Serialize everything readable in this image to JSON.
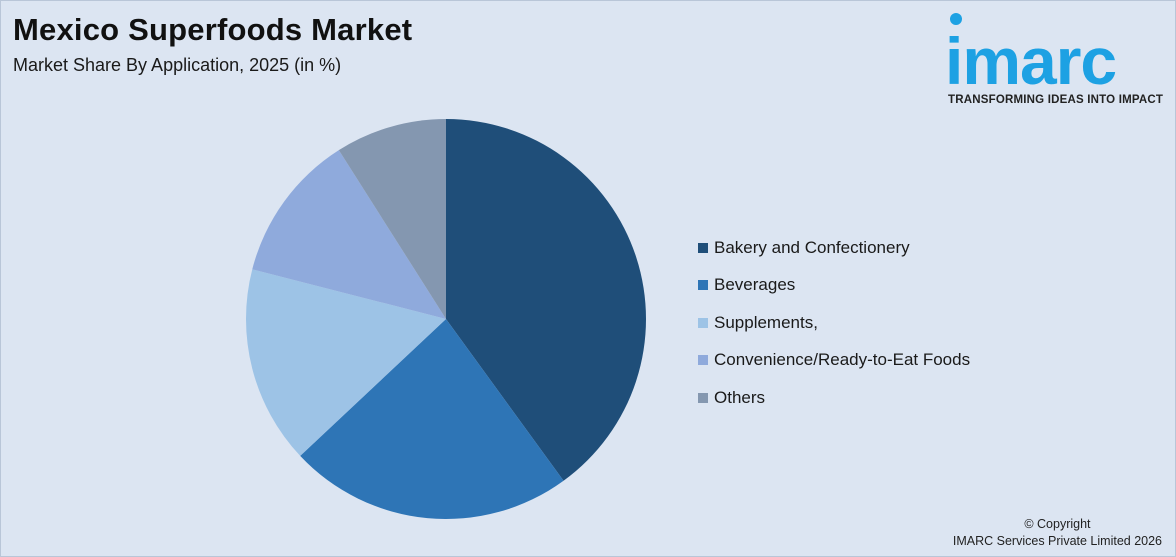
{
  "title": "Mexico Superfoods Market",
  "subtitle": "Market Share By Application, 2025 (in %)",
  "logo": {
    "word": "imarc",
    "tagline": "TRANSFORMING IDEAS INTO IMPACT"
  },
  "copyright": {
    "line1": "© Copyright",
    "line2": "IMARC Services Private Limited 2026"
  },
  "chart_data": {
    "type": "pie",
    "title": "Mexico Superfoods Market",
    "subtitle": "Market Share By Application, 2025 (in %)",
    "legend_position": "right",
    "categories": [
      "Bakery and Confectionery",
      "Beverages",
      "Supplements,",
      "Convenience/Ready-to-Eat Foods",
      "Others"
    ],
    "values": [
      40,
      23,
      16,
      12,
      9
    ],
    "colors": [
      "#1f4e79",
      "#2e75b6",
      "#9dc3e6",
      "#8faadc",
      "#8497b0"
    ]
  }
}
